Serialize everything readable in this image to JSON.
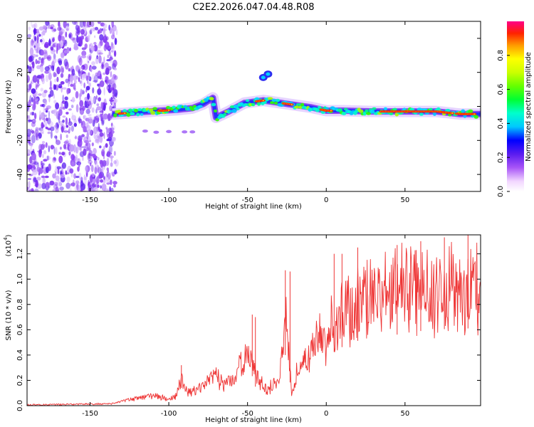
{
  "title": "C2E2.2026.047.04.48.R08",
  "chart_data": [
    {
      "type": "heatmap",
      "name": "spectrogram",
      "xlabel": "Height of straight line (km)",
      "ylabel": "Frequency (Hz)",
      "xlim": [
        -190,
        98
      ],
      "ylim": [
        -50,
        50
      ],
      "xticks": [
        -150,
        -100,
        -50,
        0,
        50
      ],
      "yticks": [
        40,
        20,
        0,
        -20,
        -40
      ],
      "noise_region_x": [
        -190,
        -133
      ],
      "ridge": [
        [
          -135,
          -4.5
        ],
        [
          -120,
          -3.5
        ],
        [
          -105,
          -2.5
        ],
        [
          -95,
          -2.0
        ],
        [
          -85,
          -1.0
        ],
        [
          -78,
          1.5
        ],
        [
          -72,
          5.0
        ],
        [
          -70,
          -6.5
        ],
        [
          -62,
          -3.0
        ],
        [
          -52,
          2.0
        ],
        [
          -40,
          3.5
        ],
        [
          -25,
          1.5
        ],
        [
          -10,
          -0.5
        ],
        [
          0,
          -2.5
        ],
        [
          10,
          -2.5
        ],
        [
          30,
          -3.0
        ],
        [
          50,
          -3.0
        ],
        [
          70,
          -3.0
        ],
        [
          85,
          -4.5
        ],
        [
          98,
          -4.5
        ]
      ],
      "high_features": [
        [
          -40,
          17
        ],
        [
          -37,
          19
        ]
      ],
      "low_features": [
        [
          -115,
          -14.5
        ],
        [
          -108,
          -15.2
        ],
        [
          -100,
          -14.8
        ],
        [
          -90,
          -15
        ],
        [
          -85,
          -15
        ]
      ],
      "colorbar": {
        "label": "Normalized spectral amplitude",
        "ticks": [
          0.0,
          0.2,
          0.4,
          0.6,
          0.8
        ],
        "tick_labels": [
          "0.0",
          "0.2",
          "0.4",
          "0.6",
          "0.8"
        ],
        "range": [
          0,
          1
        ]
      }
    },
    {
      "type": "line",
      "name": "snr",
      "xlabel": "Height of straight line (km)",
      "ylabel": "SNR (10 * v/v)",
      "multiplier_label": "(x10",
      "multiplier_exp": "4",
      "multiplier_close": ")",
      "xlim": [
        -190,
        98
      ],
      "ylim": [
        0,
        1.35
      ],
      "xticks": [
        -150,
        -100,
        -50,
        0,
        50
      ],
      "yticks": [
        0.0,
        0.2,
        0.4,
        0.6,
        0.8,
        1.0,
        1.2
      ],
      "series_color": "#ee3333",
      "envelope": [
        [
          -190,
          0.01
        ],
        [
          -135,
          0.02
        ],
        [
          -128,
          0.05
        ],
        [
          -118,
          0.08
        ],
        [
          -110,
          0.1
        ],
        [
          -100,
          0.06
        ],
        [
          -95,
          0.1
        ],
        [
          -92,
          0.28
        ],
        [
          -88,
          0.12
        ],
        [
          -82,
          0.15
        ],
        [
          -75,
          0.25
        ],
        [
          -70,
          0.3
        ],
        [
          -65,
          0.2
        ],
        [
          -58,
          0.3
        ],
        [
          -52,
          0.45
        ],
        [
          -48,
          0.55
        ],
        [
          -45,
          0.3
        ],
        [
          -38,
          0.15
        ],
        [
          -30,
          0.25
        ],
        [
          -27,
          0.7
        ],
        [
          -25,
          0.9
        ],
        [
          -22,
          0.1
        ],
        [
          -18,
          0.4
        ],
        [
          -12,
          0.45
        ],
        [
          -5,
          0.7
        ],
        [
          0,
          0.7
        ],
        [
          5,
          0.85
        ],
        [
          15,
          1.0
        ],
        [
          25,
          1.05
        ],
        [
          40,
          1.1
        ],
        [
          55,
          1.17
        ],
        [
          70,
          1.2
        ],
        [
          80,
          1.22
        ],
        [
          90,
          1.22
        ],
        [
          98,
          1.12
        ]
      ],
      "spikes": [
        [
          -92,
          0.32
        ],
        [
          -47,
          0.72
        ],
        [
          -45,
          0.7
        ],
        [
          -26,
          1.07
        ],
        [
          -23,
          1.06
        ],
        [
          5,
          1.2
        ],
        [
          10,
          1.2
        ],
        [
          20,
          1.25
        ],
        [
          45,
          1.27
        ],
        [
          60,
          1.3
        ],
        [
          75,
          1.33
        ],
        [
          90,
          1.35
        ]
      ]
    }
  ]
}
